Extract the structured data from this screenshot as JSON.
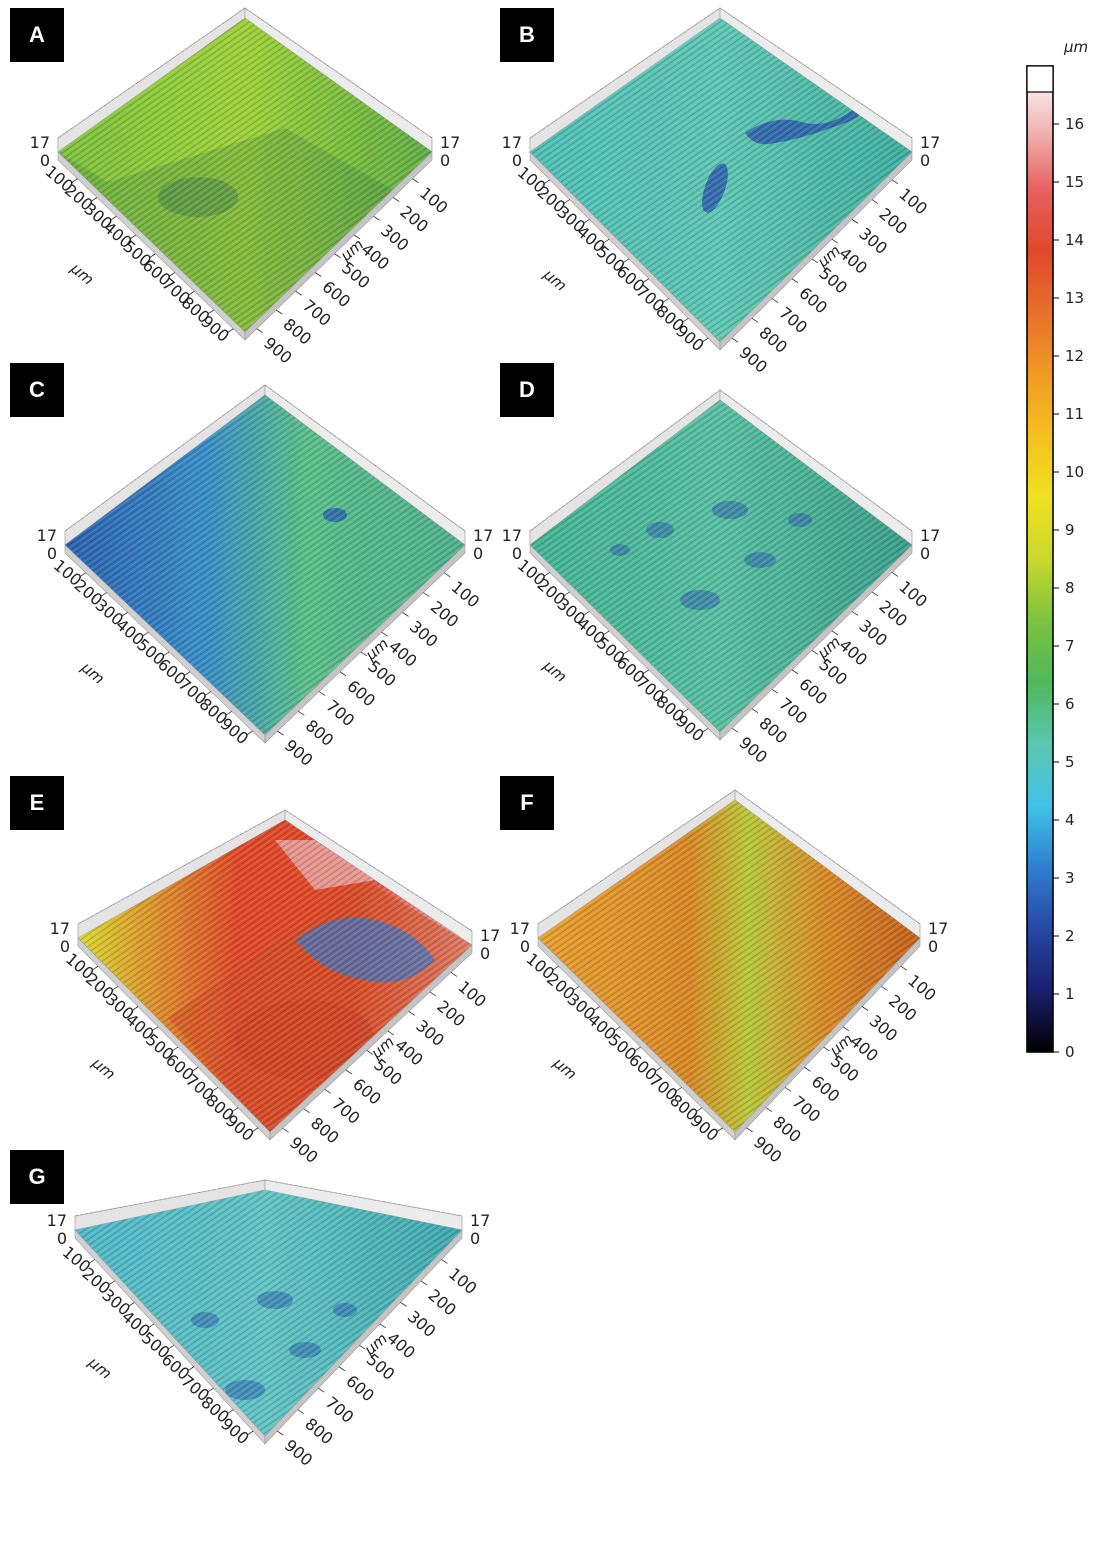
{
  "figure": {
    "panels": [
      {
        "label": "A",
        "colors": [
          "#7cc23e",
          "#9ed13a",
          "#5fae45",
          "#4f9a4a"
        ],
        "feature": "step"
      },
      {
        "label": "B",
        "colors": [
          "#4fbfb6",
          "#60c7b4",
          "#3fae9e",
          "#2f5fae"
        ],
        "feature": "pits"
      },
      {
        "label": "C",
        "colors": [
          "#3a8ec8",
          "#5bbf8a",
          "#4fb08e",
          "#2d62b0"
        ],
        "feature": "gradient"
      },
      {
        "label": "D",
        "colors": [
          "#44b396",
          "#58c0a2",
          "#3a9f8a",
          "#2f64ad"
        ],
        "feature": "spots"
      },
      {
        "label": "E",
        "colors": [
          "#d8d830",
          "#e04a2a",
          "#e8b0b0",
          "#3a78c8"
        ],
        "feature": "complex"
      },
      {
        "label": "F",
        "colors": [
          "#d98a28",
          "#e8a030",
          "#b8c83a",
          "#c4621e"
        ],
        "feature": "band"
      },
      {
        "label": "G",
        "colors": [
          "#4fb8c8",
          "#62c4c4",
          "#3fa8b0",
          "#2f68b0"
        ],
        "feature": "spots"
      }
    ],
    "axis": {
      "z_top": "17",
      "z_bottom": "0",
      "ticks_left": [
        "100",
        "200",
        "300",
        "400",
        "500",
        "600",
        "700",
        "800",
        "900"
      ],
      "ticks_right": [
        "100",
        "200",
        "300",
        "400",
        "500",
        "600",
        "700",
        "800",
        "900"
      ],
      "unit": "μm"
    },
    "colorbar": {
      "unit": "μm",
      "ticks": [
        "0",
        "1",
        "2",
        "3",
        "4",
        "5",
        "6",
        "7",
        "8",
        "9",
        "10",
        "11",
        "12",
        "13",
        "14",
        "15",
        "16"
      ],
      "gradient": [
        "#000000",
        "#1a1f6e",
        "#2747a6",
        "#2f7fd0",
        "#3fc3e8",
        "#5bc7b0",
        "#4fb85c",
        "#7cc23e",
        "#c9d92e",
        "#f0e020",
        "#f5c020",
        "#f09a22",
        "#e8702a",
        "#e0482a",
        "#e86060",
        "#f0b8b8",
        "#ffffff"
      ]
    }
  }
}
